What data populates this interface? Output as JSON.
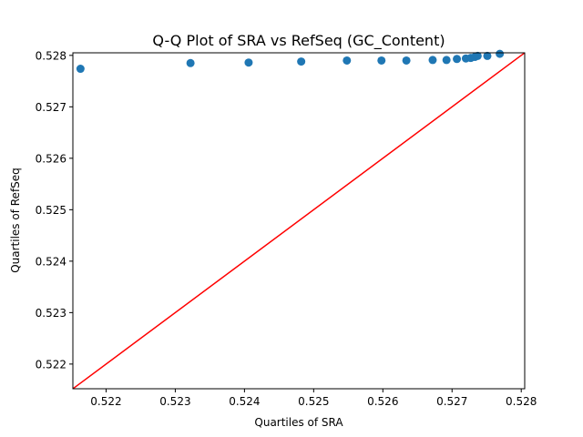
{
  "chart_data": {
    "type": "scatter",
    "title": "Q-Q Plot of SRA vs RefSeq (GC_Content)",
    "xlabel": "Quartiles of SRA",
    "ylabel": "Quartiles of RefSeq",
    "xlim": [
      0.52152,
      0.52805
    ],
    "ylim": [
      0.52152,
      0.52805
    ],
    "x_ticks": [
      "0.522",
      "0.523",
      "0.524",
      "0.525",
      "0.526",
      "0.527",
      "0.528"
    ],
    "y_ticks": [
      "0.522",
      "0.523",
      "0.524",
      "0.525",
      "0.526",
      "0.527",
      "0.528"
    ],
    "x_tick_values": [
      0.522,
      0.523,
      0.524,
      0.525,
      0.526,
      0.527,
      0.528
    ],
    "y_tick_values": [
      0.522,
      0.523,
      0.524,
      0.525,
      0.526,
      0.527,
      0.528
    ],
    "grid": false,
    "point_color": "#1f77b4",
    "line_color": "#ff0000",
    "reference_line": {
      "from": [
        0.52152,
        0.52152
      ],
      "to": [
        0.52805,
        0.52805
      ]
    },
    "x": [
      0.52163,
      0.52322,
      0.52406,
      0.52482,
      0.52548,
      0.52598,
      0.52634,
      0.52672,
      0.52692,
      0.52707,
      0.5272,
      0.52727,
      0.52733,
      0.52737,
      0.52751,
      0.52769
    ],
    "y": [
      0.52774,
      0.52785,
      0.52786,
      0.52788,
      0.5279,
      0.5279,
      0.5279,
      0.52791,
      0.52791,
      0.52793,
      0.52794,
      0.52795,
      0.52797,
      0.52799,
      0.52799,
      0.52803
    ]
  }
}
